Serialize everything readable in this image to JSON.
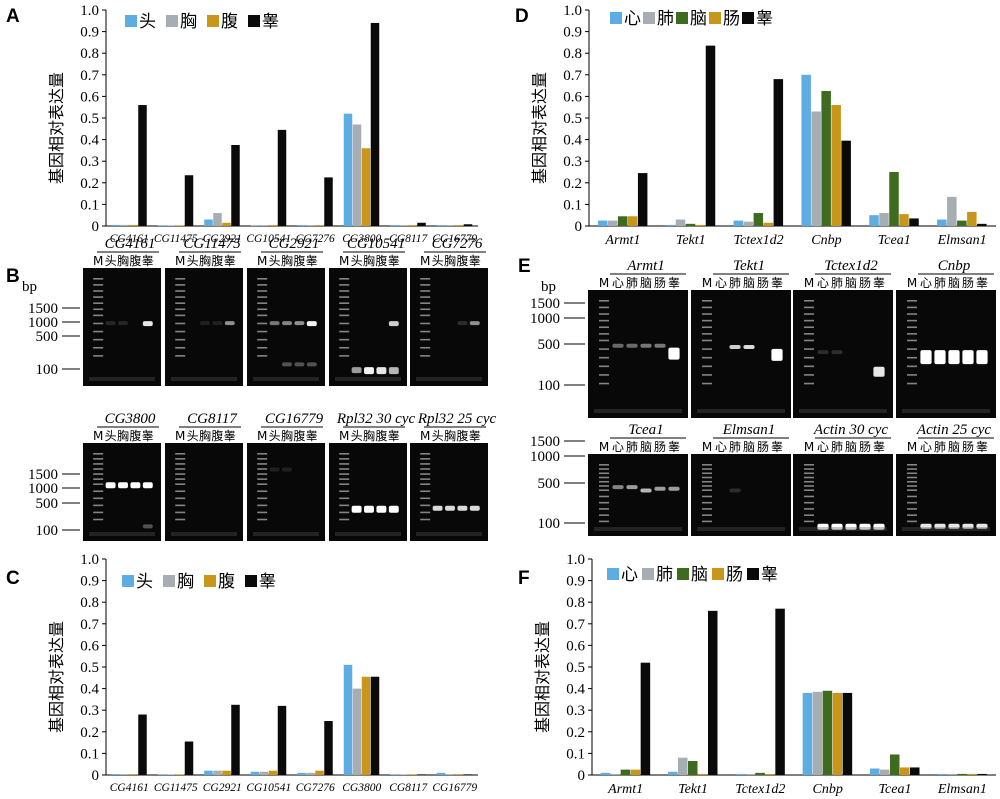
{
  "colors": {
    "c1": "#5DADE2",
    "c2": "#A6AEB4",
    "c3": "#3E6B1F",
    "c4": "#C9961C",
    "c5": "#0A0A0A",
    "fly1": "#5DADE2",
    "fly2": "#A6AEB4",
    "fly3": "#C9961C",
    "fly4": "#0A0A0A"
  },
  "panel_letters": {
    "a": "A",
    "b": "B",
    "c": "C",
    "d": "D",
    "e": "E",
    "f": "F"
  },
  "y_label": "基因相对表达量",
  "fly_legend": [
    "头",
    "胸",
    "腹",
    "睾"
  ],
  "mouse_legend": [
    "心",
    "肺",
    "脑",
    "肠",
    "睾"
  ],
  "yticks": [
    "0",
    "0.1",
    "0.2",
    "0.3",
    "0.4",
    "0.5",
    "0.6",
    "0.7",
    "0.8",
    "0.9",
    "1.0"
  ],
  "chart_data": [
    {
      "panel": "A",
      "type": "bar",
      "xlabel": "",
      "ylabel": "基因相对表达量",
      "ylim": [
        0,
        1.0
      ],
      "categories": [
        "CG4161",
        "CG11475",
        "CG2921",
        "CG10541",
        "CG7276",
        "CG3800",
        "CG8117",
        "CG16779"
      ],
      "series": [
        {
          "name": "头",
          "values": [
            0.005,
            0.003,
            0.03,
            0.003,
            0.004,
            0.52,
            0.004,
            0.004
          ]
        },
        {
          "name": "胸",
          "values": [
            0.005,
            0.003,
            0.06,
            0.004,
            0.004,
            0.47,
            0.004,
            0.004
          ]
        },
        {
          "name": "腹",
          "values": [
            0.005,
            0.003,
            0.015,
            0.004,
            0.004,
            0.36,
            0.004,
            0.004
          ]
        },
        {
          "name": "睾",
          "values": [
            0.56,
            0.235,
            0.375,
            0.445,
            0.225,
            0.94,
            0.015,
            0.008
          ]
        }
      ]
    },
    {
      "panel": "C",
      "type": "bar",
      "xlabel": "",
      "ylabel": "基因相对表达量",
      "ylim": [
        0,
        1.0
      ],
      "categories": [
        "CG4161",
        "CG11475",
        "CG2921",
        "CG10541",
        "CG7276",
        "CG3800",
        "CG8117",
        "CG16779"
      ],
      "series": [
        {
          "name": "头",
          "values": [
            0.004,
            0.003,
            0.02,
            0.015,
            0.01,
            0.51,
            0.003,
            0.01
          ]
        },
        {
          "name": "胸",
          "values": [
            0.004,
            0.003,
            0.02,
            0.015,
            0.01,
            0.4,
            0.003,
            0.004
          ]
        },
        {
          "name": "腹",
          "values": [
            0.004,
            0.003,
            0.02,
            0.02,
            0.02,
            0.455,
            0.003,
            0.004
          ]
        },
        {
          "name": "睾",
          "values": [
            0.28,
            0.155,
            0.325,
            0.32,
            0.25,
            0.455,
            0.003,
            0.003
          ]
        }
      ]
    },
    {
      "panel": "D",
      "type": "bar",
      "xlabel": "",
      "ylabel": "基因相对表达量",
      "ylim": [
        0,
        1.0
      ],
      "categories": [
        "Armt1",
        "Tekt1",
        "Tctex1d2",
        "Cnbp",
        "Tcea1",
        "Elmsan1"
      ],
      "series": [
        {
          "name": "心",
          "values": [
            0.025,
            0.005,
            0.025,
            0.7,
            0.05,
            0.03
          ]
        },
        {
          "name": "肺",
          "values": [
            0.025,
            0.03,
            0.02,
            0.53,
            0.06,
            0.135
          ]
        },
        {
          "name": "脑",
          "values": [
            0.045,
            0.01,
            0.06,
            0.625,
            0.25,
            0.025
          ]
        },
        {
          "name": "肠",
          "values": [
            0.045,
            0.005,
            0.015,
            0.56,
            0.055,
            0.065
          ]
        },
        {
          "name": "睾",
          "values": [
            0.245,
            0.835,
            0.68,
            0.395,
            0.035,
            0.01
          ]
        }
      ]
    },
    {
      "panel": "F",
      "type": "bar",
      "xlabel": "",
      "ylabel": "基因相对表达量",
      "ylim": [
        0,
        1.0
      ],
      "categories": [
        "Armt1",
        "Tekt1",
        "Tctex1d2",
        "Cnbp",
        "Tcea1",
        "Elmsan1"
      ],
      "series": [
        {
          "name": "心",
          "values": [
            0.01,
            0.015,
            0.005,
            0.38,
            0.03,
            0.005
          ]
        },
        {
          "name": "肺",
          "values": [
            0.005,
            0.08,
            0.005,
            0.385,
            0.025,
            0.005
          ]
        },
        {
          "name": "脑",
          "values": [
            0.025,
            0.065,
            0.01,
            0.39,
            0.095,
            0.005
          ]
        },
        {
          "name": "肠",
          "values": [
            0.025,
            0.005,
            0.005,
            0.38,
            0.035,
            0.005
          ]
        },
        {
          "name": "睾",
          "values": [
            0.52,
            0.76,
            0.77,
            0.38,
            0.035,
            0.005
          ]
        }
      ]
    }
  ],
  "gels": {
    "b_top": [
      "CG4161",
      "CG11475",
      "CG2921",
      "CG10541",
      "CG7276"
    ],
    "b_bottom": [
      "CG3800",
      "CG8117",
      "CG16779",
      "Rpl32 30 cyc",
      "Rpl32 25 cyc"
    ],
    "e_top": [
      "Armt1",
      "Tekt1",
      "Tctex1d2",
      "Cnbp"
    ],
    "e_bottom": [
      "Tcea1",
      "Elmsan1",
      "Actin 30 cyc",
      "Actin 25 cyc"
    ],
    "lanes_fly": [
      "M",
      "头",
      "胸",
      "腹",
      "睾"
    ],
    "lanes_mouse": [
      "M",
      "心",
      "肺",
      "脑",
      "肠",
      "睾"
    ],
    "bp_unit": "bp",
    "bp_fly": [
      "1500",
      "1000",
      "500",
      "100"
    ],
    "bp_mouse": [
      "1500",
      "1000",
      "500",
      "100"
    ]
  }
}
